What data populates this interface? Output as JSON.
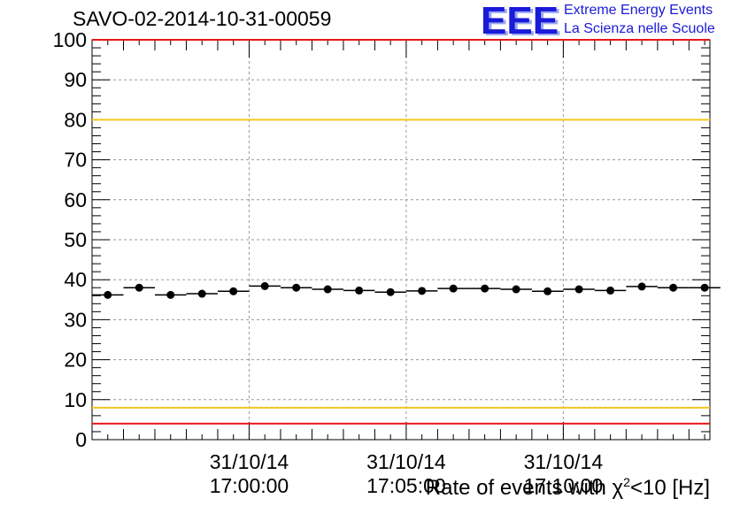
{
  "header": {
    "run_title": "SAVO-02-2014-10-31-00059",
    "logo_text": "EEE",
    "logo_line1": "Extreme Energy Events",
    "logo_line2": "La Scienza nelle Scuole"
  },
  "colors": {
    "logo_blue": "#1a1ad9",
    "limit_red": "#e8191c",
    "limit_yellow": "#f3c623",
    "markers": "#000000",
    "grid": "#9a9a9a"
  },
  "chart_data": {
    "type": "scatter",
    "title": "SAVO-02-2014-10-31-00059",
    "xlabel_prefix": "Rate of events with χ",
    "xlabel_sup": "2",
    "xlabel_suffix": "<10 [Hz]",
    "ylabel": "",
    "ylim": [
      0,
      100
    ],
    "yticks": [
      0,
      10,
      20,
      30,
      40,
      50,
      60,
      70,
      80,
      90,
      100
    ],
    "xrange": [
      "2014-10-31 16:55:00",
      "2014-10-31 17:14:40"
    ],
    "xtick_labels": [
      {
        "date": "31/10/14",
        "time": "17:00:00"
      },
      {
        "date": "31/10/14",
        "time": "17:05:00"
      },
      {
        "date": "31/10/14",
        "time": "17:10:00"
      }
    ],
    "grid": true,
    "legend": "none",
    "reference_lines": [
      {
        "color": "red",
        "y": 100
      },
      {
        "color": "yellow",
        "y": 80
      },
      {
        "color": "yellow",
        "y": 8
      },
      {
        "color": "red",
        "y": 4
      }
    ],
    "series": [
      {
        "x": [
          "16:55:30",
          "16:56:30",
          "16:57:30",
          "16:58:30",
          "16:59:30",
          "17:00:30",
          "17:01:30",
          "17:02:30",
          "17:03:30",
          "17:04:30",
          "17:05:30",
          "17:06:30",
          "17:07:30",
          "17:08:30",
          "17:09:30",
          "17:10:30",
          "17:11:30",
          "17:12:30",
          "17:13:30",
          "17:14:30"
        ],
        "values": [
          36.2,
          38.0,
          36.2,
          36.5,
          37.1,
          38.4,
          38.0,
          37.6,
          37.3,
          36.9,
          37.2,
          37.8,
          37.8,
          37.6,
          37.1,
          37.6,
          37.3,
          38.3,
          38.0,
          38.0
        ]
      }
    ]
  }
}
